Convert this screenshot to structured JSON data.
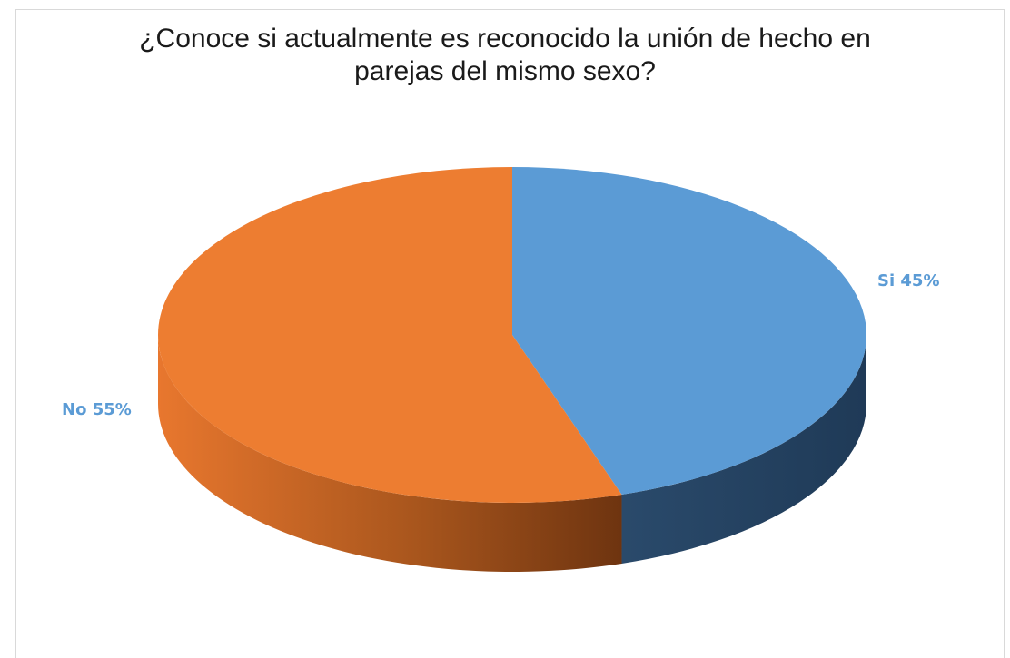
{
  "chart_data": {
    "type": "pie",
    "title": [
      "¿Conoce si actualmente es reconocido la unión de hecho en",
      "parejas del mismo sexo?"
    ],
    "slices": [
      {
        "label": "Si",
        "value": 45,
        "display": "Si 45%",
        "color": "#5b9bd5",
        "side_color": "#2a4a6b"
      },
      {
        "label": "No",
        "value": 55,
        "display": "No 55%",
        "color": "#ed7d31",
        "side_color": "#9a4e1c"
      }
    ],
    "label_color": "#5b9bd5",
    "style": "3d"
  }
}
